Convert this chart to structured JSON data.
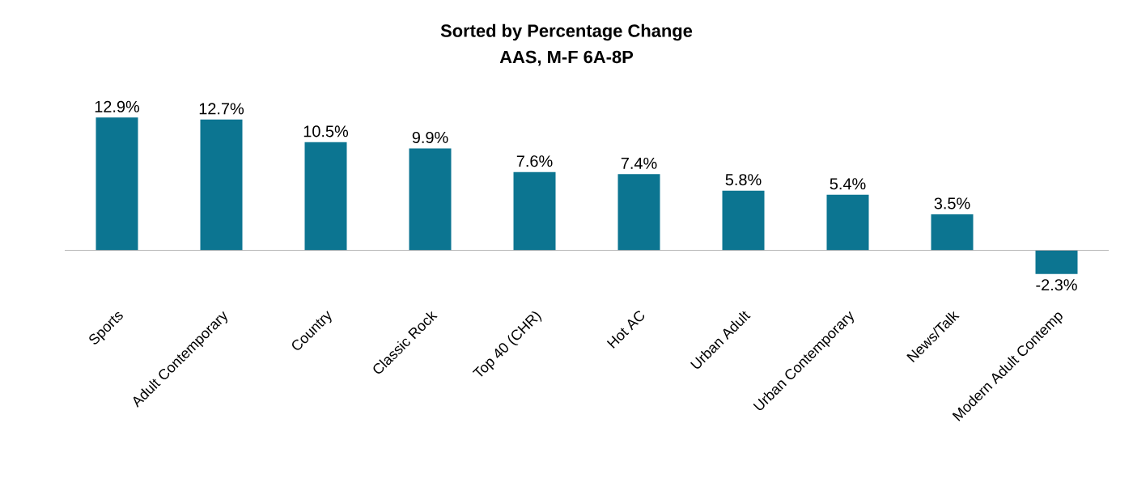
{
  "chart_data": {
    "type": "bar",
    "title": "Sorted by Percentage Change",
    "subtitle": "AAS, M-F 6A-8P",
    "categories": [
      "Sports",
      "Adult Contemporary",
      "Country",
      "Classic Rock",
      "Top 40 (CHR)",
      "Hot AC",
      "Urban Adult",
      "Urban Contemporary",
      "News/Talk",
      "Modern Adult Contemp"
    ],
    "values": [
      12.9,
      12.7,
      10.5,
      9.9,
      7.6,
      7.4,
      5.8,
      5.4,
      3.5,
      -2.3
    ],
    "value_labels": [
      "12.9%",
      "12.7%",
      "10.5%",
      "9.9%",
      "7.6%",
      "7.4%",
      "5.8%",
      "5.4%",
      "3.5%",
      "-2.3%"
    ],
    "color": "#0c7591"
  }
}
